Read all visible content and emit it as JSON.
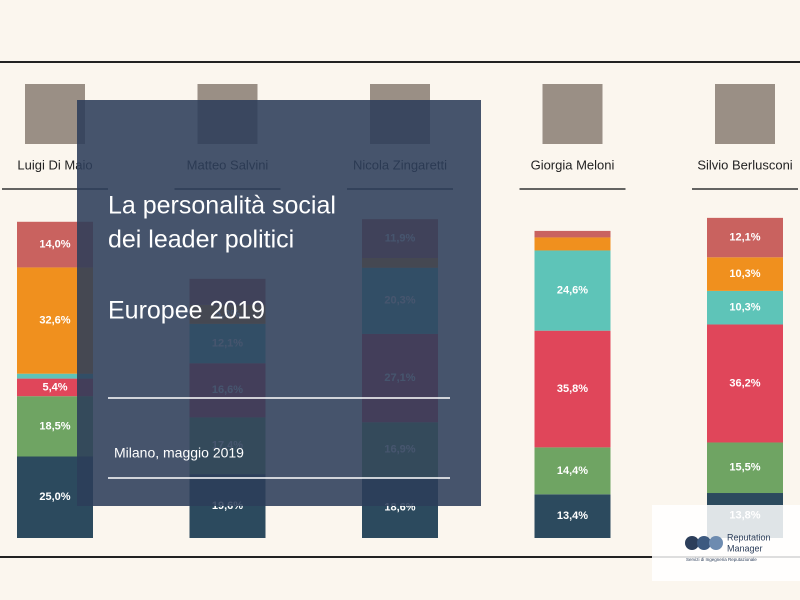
{
  "chart_data": {
    "type": "stacked_bar",
    "title_lines": [
      "La personalità social",
      "dei leader politici"
    ],
    "subtitle": "Europee 2019",
    "place_date": "Milano, maggio 2019",
    "brand": {
      "name_lines": [
        "Reputation",
        "Manager"
      ],
      "tagline": "Servizi di Ingegneria Reputazionale"
    },
    "categories": [
      "Luigi Di Maio",
      "Matteo Salvini",
      "Nicola Zingaretti",
      "Giorgia Meloni",
      "Silvio Berlusconi"
    ],
    "ylim": [
      0,
      100
    ],
    "series": [
      {
        "color": "#2c4a5e",
        "values": [
          25.0,
          19.6,
          18.6,
          13.4,
          13.8
        ],
        "value_labels": [
          "25,0%",
          "19,6%",
          "18,6%",
          "13,4%",
          "13,8%"
        ]
      },
      {
        "color": "#6fa463",
        "values": [
          18.5,
          17.4,
          16.9,
          14.4,
          15.5
        ],
        "value_labels": [
          "18,5%",
          "17,4%",
          "16,9%",
          "14,4%",
          "15,5%"
        ]
      },
      {
        "color": "#e0465a",
        "values": [
          5.4,
          16.6,
          27.1,
          35.8,
          36.2
        ],
        "value_labels": [
          "5,4%",
          "16,6%",
          "27,1%",
          "35,8%",
          "36,2%"
        ]
      },
      {
        "color": "#5ec4b8",
        "values": [
          1.5,
          12.1,
          20.3,
          24.6,
          10.3
        ],
        "value_labels": [
          null,
          "12,1%",
          "20,3%",
          "24,6%",
          "10,3%"
        ]
      },
      {
        "color": "#f0901e",
        "values": [
          32.6,
          5.8,
          3,
          4,
          10.3
        ],
        "value_labels": [
          "32,6%",
          "5,8%",
          null,
          null,
          "10,3%"
        ]
      },
      {
        "color": "#c9625f",
        "values": [
          14.0,
          8,
          11.9,
          2,
          12.1
        ],
        "value_labels": [
          "14,0%",
          null,
          "11,9%",
          null,
          "12,1%"
        ]
      }
    ]
  }
}
